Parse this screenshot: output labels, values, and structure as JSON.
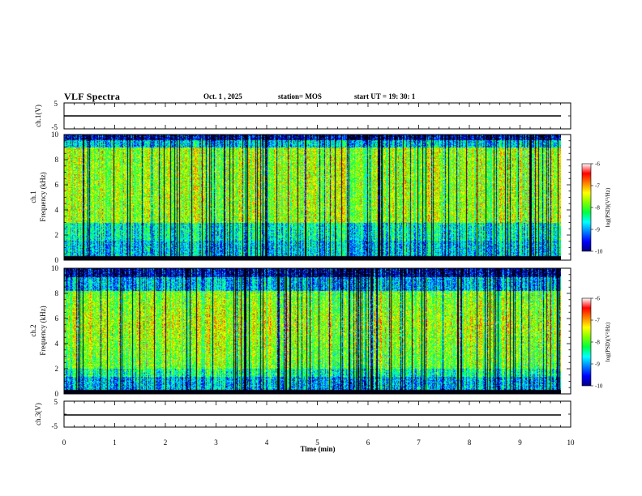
{
  "header": {
    "title": "VLF Spectra",
    "date": "Oct. 1 , 2025",
    "station": "station= MOS",
    "start_ut": "start UT =  19: 30: 1"
  },
  "chart_data": [
    {
      "type": "line",
      "name": "ch1-waveform",
      "ylabel": "ch.1(V)",
      "ylim": [
        -5,
        5
      ],
      "ytick_labels": [
        "5",
        "-5"
      ],
      "xlim": [
        0,
        10
      ],
      "series": [
        {
          "name": "ch.1",
          "approx_value": 0
        }
      ]
    },
    {
      "type": "heatmap",
      "name": "ch1-spectrogram",
      "ylabel": "ch.1\nFrequency (kHz)",
      "ylabel_line1": "ch.1",
      "ylabel_line2": "Frequency (kHz)",
      "ylim": [
        0,
        10
      ],
      "ytick_labels": [
        "0",
        "2",
        "4",
        "6",
        "8",
        "10"
      ],
      "xlim": [
        0,
        10
      ],
      "data_end_min": 9.8,
      "colorbar": {
        "label": "log(PSD)(V²/Hz)",
        "range": [
          -10,
          -6
        ],
        "tick_labels": [
          "-6",
          "-7",
          "-8",
          "-9",
          "-10"
        ]
      }
    },
    {
      "type": "heatmap",
      "name": "ch2-spectrogram",
      "ylabel": "ch.2\nFrequency (kHz)",
      "ylabel_line1": "ch.2",
      "ylabel_line2": "Frequency (kHz)",
      "ylim": [
        0,
        10
      ],
      "ytick_labels": [
        "0",
        "2",
        "4",
        "6",
        "8",
        "10"
      ],
      "xlim": [
        0,
        10
      ],
      "data_end_min": 9.8,
      "colorbar": {
        "label": "log(PSD)(V²/Hz)",
        "range": [
          -10,
          -6
        ],
        "tick_labels": [
          "-6",
          "-7",
          "-8",
          "-9",
          "-10"
        ]
      }
    },
    {
      "type": "line",
      "name": "ch3-waveform",
      "ylabel": "ch.3(V)",
      "ylim": [
        -5,
        5
      ],
      "ytick_labels": [
        "5",
        "-5"
      ],
      "xlim": [
        0,
        10
      ],
      "xlabel": "Time (min)",
      "xtick_labels": [
        "0",
        "1",
        "2",
        "3",
        "4",
        "5",
        "6",
        "7",
        "8",
        "9",
        "10"
      ],
      "series": [
        {
          "name": "ch.3",
          "approx_value": 0
        }
      ]
    }
  ],
  "colormap": [
    "#000080",
    "#0000ff",
    "#0080ff",
    "#00ffff",
    "#00ff40",
    "#80ff00",
    "#ffff00",
    "#ff8000",
    "#ff0000",
    "#ffffff"
  ]
}
